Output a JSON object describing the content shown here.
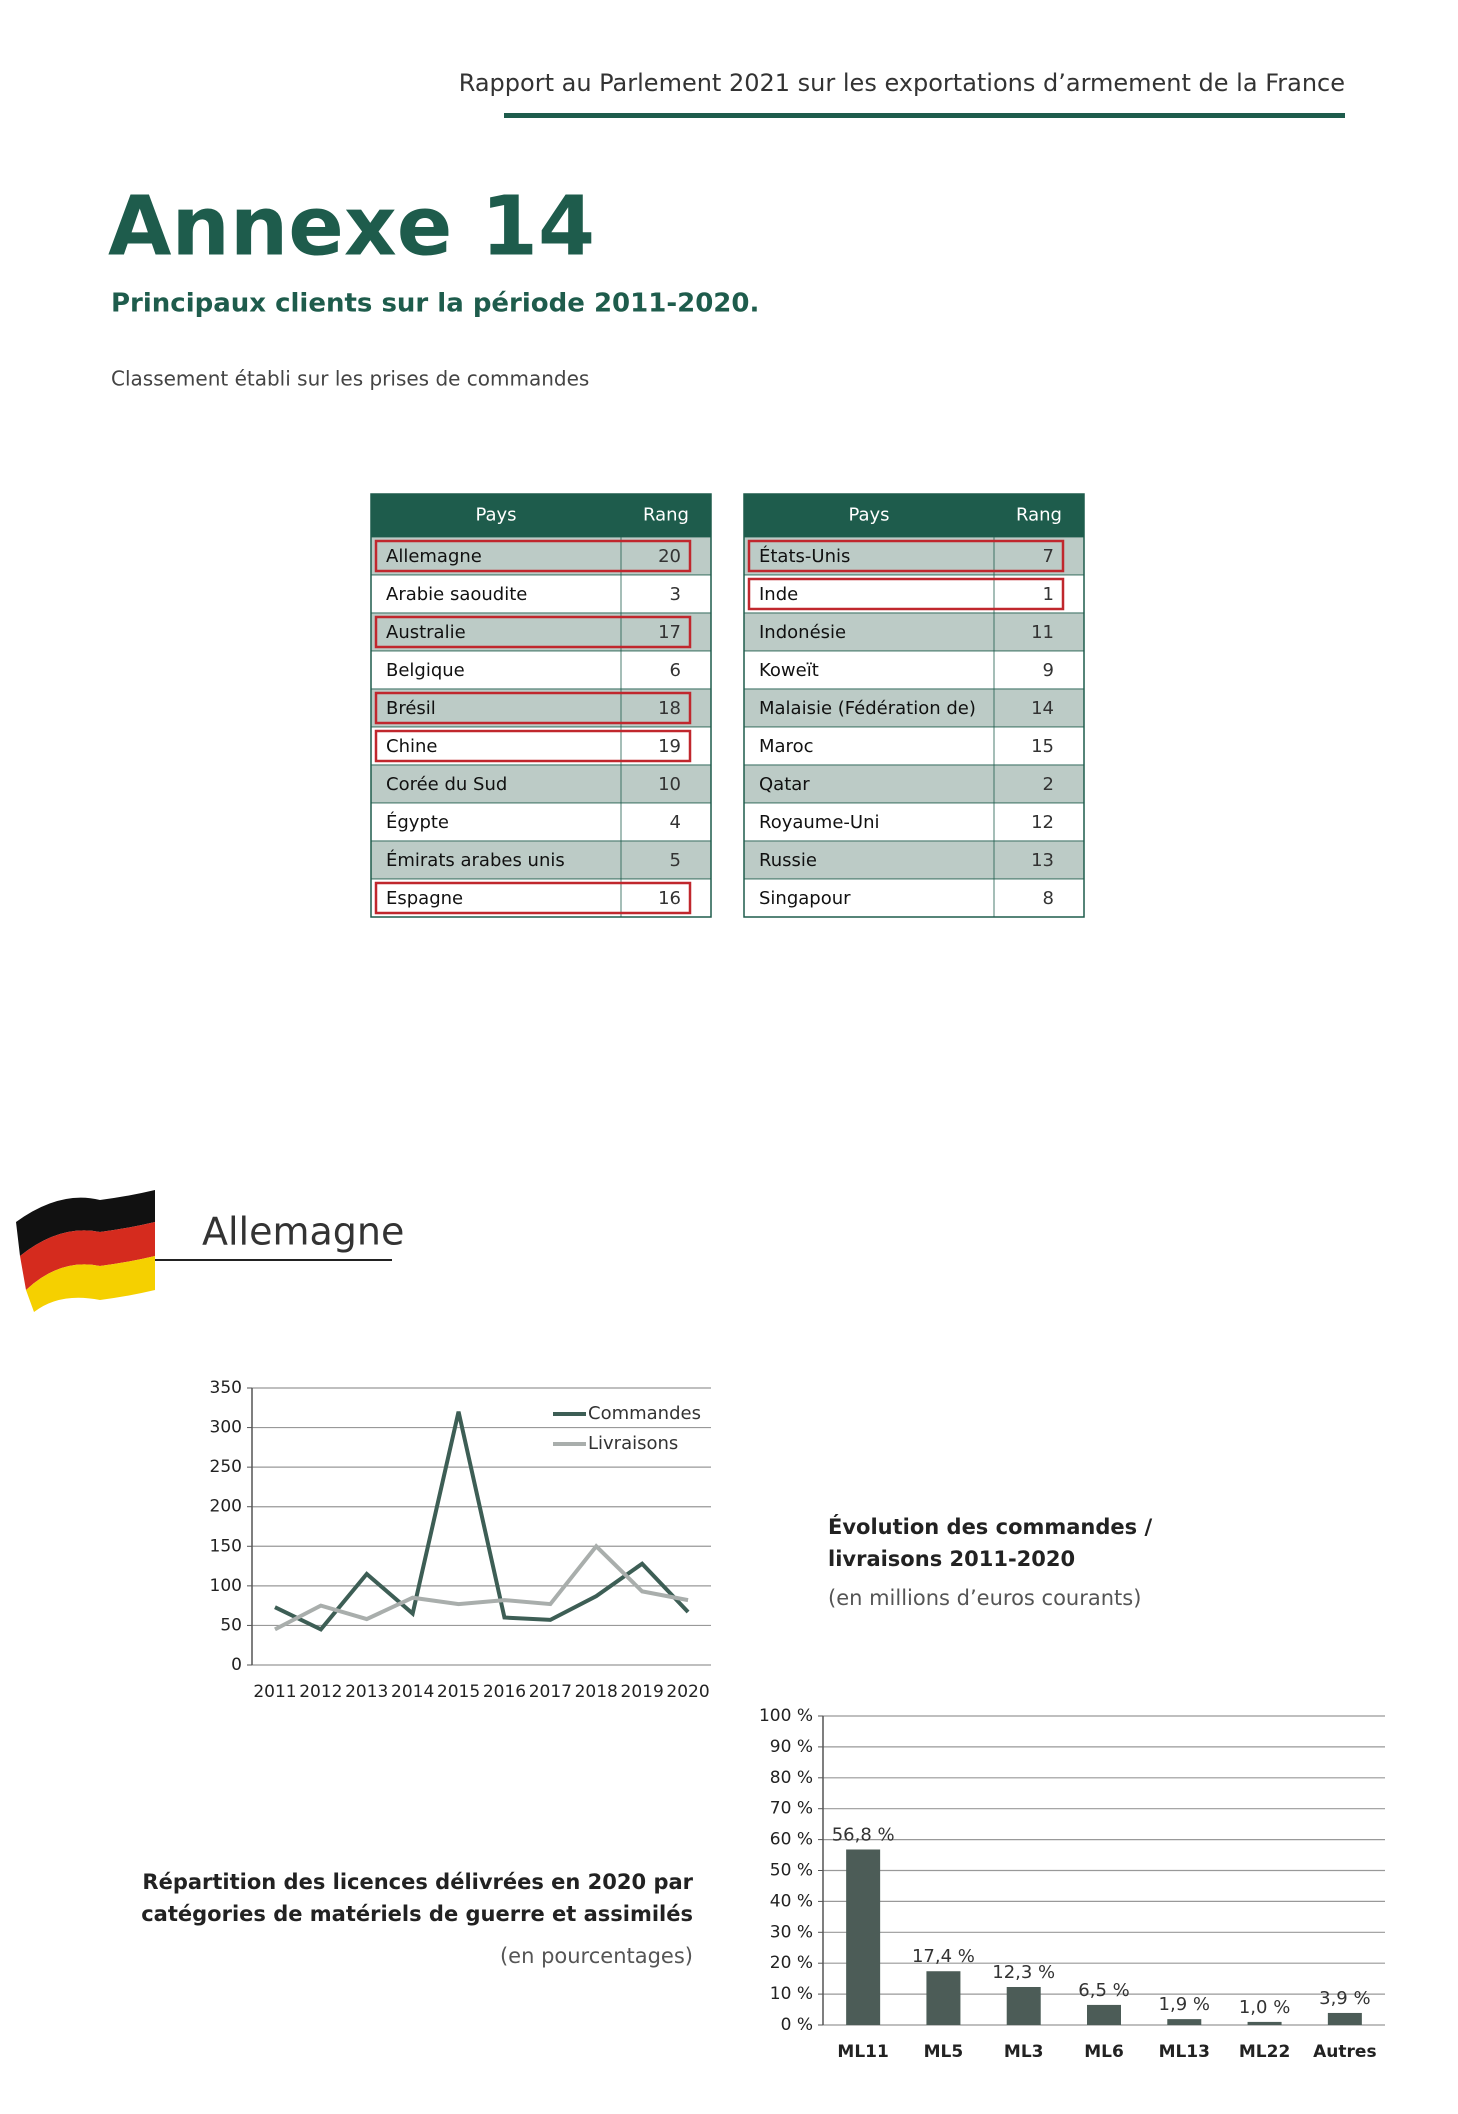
{
  "header": "Rapport au Parlement 2021 sur les exportations d’armement de la France",
  "title": "Annexe 14",
  "subtitle": "Principaux clients sur la période 2011-2020.",
  "note": "Classement établi sur les prises de commandes",
  "tables": [
    {
      "columns": [
        "Pays",
        "Rang"
      ],
      "rows": [
        [
          "Allemagne",
          "20"
        ],
        [
          "Arabie saoudite",
          "3"
        ],
        [
          "Australie",
          "17"
        ],
        [
          "Belgique",
          "6"
        ],
        [
          "Brésil",
          "18"
        ],
        [
          "Chine",
          "19"
        ],
        [
          "Corée du Sud",
          "10"
        ],
        [
          "Égypte",
          "4"
        ],
        [
          "Émirats arabes unis",
          "5"
        ],
        [
          "Espagne",
          "16"
        ]
      ],
      "highlight": [
        true,
        false,
        true,
        false,
        true,
        true,
        false,
        false,
        false,
        true
      ]
    },
    {
      "columns": [
        "Pays",
        "Rang"
      ],
      "rows": [
        [
          "États-Unis",
          "7"
        ],
        [
          "Inde",
          "1"
        ],
        [
          "Indonésie",
          "11"
        ],
        [
          "Koweït",
          "9"
        ],
        [
          "Malaisie (Fédération de)",
          "14"
        ],
        [
          "Maroc",
          "15"
        ],
        [
          "Qatar",
          "2"
        ],
        [
          "Royaume-Uni",
          "12"
        ],
        [
          "Russie",
          "13"
        ],
        [
          "Singapour",
          "8"
        ]
      ],
      "highlight": [
        true,
        true,
        false,
        false,
        false,
        false,
        false,
        false,
        false,
        false
      ]
    }
  ],
  "country": "Allemagne",
  "chart_data": [
    {
      "type": "line",
      "title": "Évolution des commandes / livraisons 2011-2020",
      "subtitle": "(en millions d’euros courants)",
      "categories": [
        "2011",
        "2012",
        "2013",
        "2014",
        "2015",
        "2016",
        "2017",
        "2018",
        "2019",
        "2020"
      ],
      "series": [
        {
          "name": "Commandes",
          "color": "#3d5e55",
          "values": [
            73,
            45,
            115,
            65,
            320,
            60,
            57,
            87,
            128,
            67
          ]
        },
        {
          "name": "Livraisons",
          "color": "#a9aeac",
          "values": [
            45,
            75,
            58,
            85,
            77,
            82,
            77,
            150,
            93,
            82
          ]
        }
      ],
      "ylim": [
        0,
        350
      ],
      "yticks": [
        0,
        50,
        100,
        150,
        200,
        250,
        300,
        350
      ],
      "grid": true,
      "legend": "top-right"
    },
    {
      "type": "bar",
      "title": "Répartition des licences délivrées en 2020 par catégories de matériels de guerre et assimilés",
      "subtitle": "(en pourcentages)",
      "categories": [
        "ML11",
        "ML5",
        "ML3",
        "ML6",
        "ML13",
        "ML22",
        "Autres"
      ],
      "values": [
        56.8,
        17.4,
        12.3,
        6.5,
        1.9,
        1.0,
        3.9
      ],
      "value_labels": [
        "56,8 %",
        "17,4 %",
        "12,3 %",
        "6,5 %",
        "1,9 %",
        "1,0 %",
        "3,9 %"
      ],
      "color": "#4c5c57",
      "ylim": [
        0,
        100
      ],
      "yticks": [
        {
          "value": 0,
          "label": "0 %"
        },
        {
          "value": 10,
          "label": "10 %"
        },
        {
          "value": 20,
          "label": "20 %"
        },
        {
          "value": 30,
          "label": "30 %"
        },
        {
          "value": 40,
          "label": "40 %"
        },
        {
          "value": 50,
          "label": "50 %"
        },
        {
          "value": 60,
          "label": "60 %"
        },
        {
          "value": 70,
          "label": "70 %"
        },
        {
          "value": 80,
          "label": "80 %"
        },
        {
          "value": 90,
          "label": "90 %"
        },
        {
          "value": 100,
          "label": "100 %"
        }
      ],
      "grid": true
    }
  ]
}
